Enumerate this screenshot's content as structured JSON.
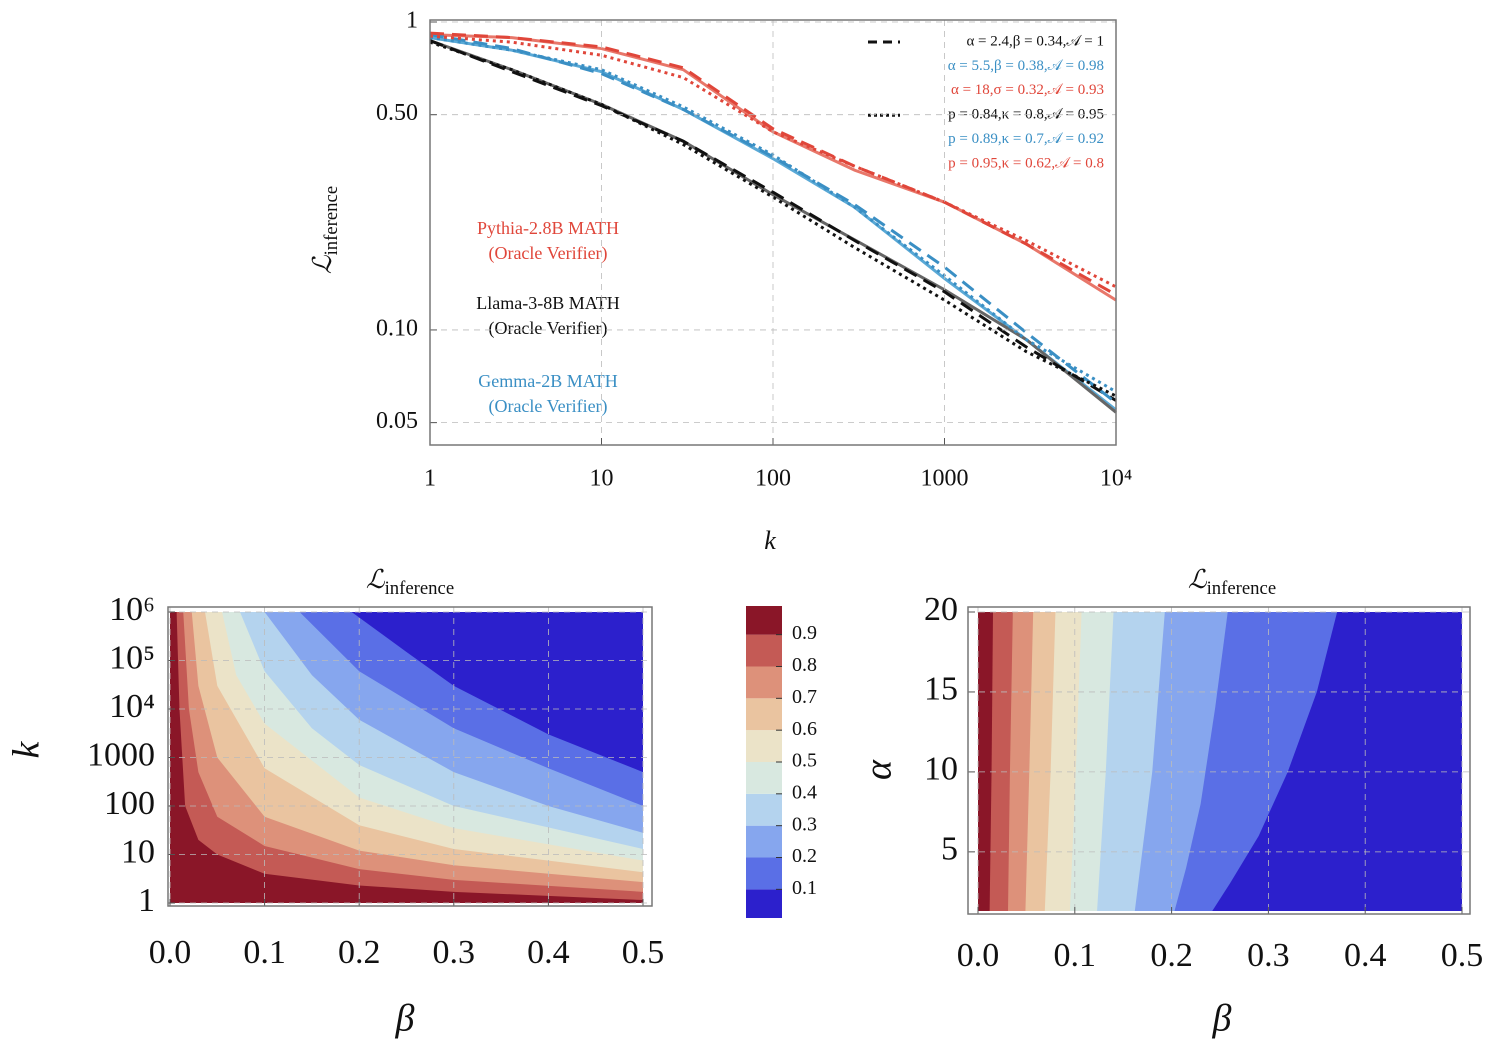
{
  "chart_data": [
    {
      "type": "line",
      "log_x": true,
      "log_y": true,
      "grid": true,
      "x_label": "k",
      "y_label": "ℒ",
      "y_label_sub": "inference",
      "xlim": [
        1,
        10000
      ],
      "ylim": [
        0.0423,
        1
      ],
      "xticks": [
        1,
        10,
        100,
        1000,
        {
          "value": 10000,
          "label": "10⁴"
        }
      ],
      "yticks": [
        0.05,
        {
          "value": 0.1,
          "label": "0.10"
        },
        {
          "value": 0.5,
          "label": "0.50"
        },
        1
      ],
      "x": [
        1,
        3,
        10,
        30,
        100,
        300,
        1000,
        3000,
        10000
      ],
      "legend": "top-right",
      "series": [
        {
          "color": "#e8776a",
          "dash": "solid",
          "values": [
            0.91,
            0.89,
            0.82,
            0.7,
            0.44,
            0.33,
            0.26,
            0.19,
            0.125
          ]
        },
        {
          "color": "#5aa9d6",
          "dash": "solid",
          "values": [
            0.89,
            0.81,
            0.69,
            0.52,
            0.36,
            0.25,
            0.147,
            0.093,
            0.055
          ]
        },
        {
          "color": "#666666",
          "dash": "solid",
          "values": [
            0.87,
            0.7,
            0.54,
            0.41,
            0.275,
            0.196,
            0.135,
            0.093,
            0.054
          ]
        },
        {
          "name": "α = 2.4,β = 0.34,𝒜 = 1",
          "color": "#111111",
          "dash": "dashed",
          "legend_marker": true,
          "values": [
            0.87,
            0.69,
            0.535,
            0.41,
            0.28,
            0.195,
            0.133,
            0.088,
            0.059
          ]
        },
        {
          "name": "α = 5.5,β = 0.38,𝒜 = 0.98",
          "color": "#3a8fc4",
          "dash": "dashed",
          "values": [
            0.91,
            0.82,
            0.68,
            0.52,
            0.365,
            0.255,
            0.16,
            0.098,
            0.058
          ]
        },
        {
          "name": "α = 18,σ = 0.32,𝒜 = 0.93",
          "color": "#e0463a",
          "dash": "dashed",
          "values": [
            0.92,
            0.89,
            0.83,
            0.71,
            0.45,
            0.34,
            0.26,
            0.19,
            0.13
          ]
        },
        {
          "name": "p = 0.84,κ = 0.8,𝒜 = 0.95",
          "color": "#111111",
          "dash": "dotted",
          "legend_marker": true,
          "values": [
            0.86,
            0.7,
            0.54,
            0.4,
            0.27,
            0.185,
            0.125,
            0.085,
            0.061
          ]
        },
        {
          "name": "p = 0.89,κ = 0.7,𝒜 = 0.92",
          "color": "#3a8fc4",
          "dash": "dotted",
          "values": [
            0.89,
            0.81,
            0.7,
            0.53,
            0.37,
            0.25,
            0.15,
            0.093,
            0.063
          ]
        },
        {
          "name": "p = 0.95,κ = 0.62,𝒜 = 0.8",
          "color": "#e0463a",
          "dash": "dotted",
          "values": [
            0.9,
            0.86,
            0.78,
            0.66,
            0.44,
            0.34,
            0.26,
            0.195,
            0.138
          ]
        }
      ],
      "annotations": [
        {
          "lines": [
            "Pythia-2.8B MATH",
            "(Oracle Verifier)"
          ],
          "color": "#e0463a"
        },
        {
          "lines": [
            "Llama-3-8B MATH",
            "(Oracle Verifier)"
          ],
          "color": "#111111"
        },
        {
          "lines": [
            "Gemma-2B MATH",
            "(Oracle Verifier)"
          ],
          "color": "#3a8fc4"
        }
      ]
    },
    {
      "type": "contour",
      "log_y": true,
      "grid": true,
      "title": "ℒ",
      "title_sub": "inference",
      "x_label": "β",
      "y_label": "k",
      "xlim": [
        0,
        0.5
      ],
      "ylim": [
        1,
        1000000
      ],
      "xticks": [
        {
          "value": 0,
          "label": "0.0"
        },
        0.1,
        0.2,
        0.3,
        0.4,
        0.5
      ],
      "yticks": [
        1,
        10,
        100,
        1000,
        {
          "value": 10000,
          "label": "10⁴"
        },
        {
          "value": 100000,
          "label": "10⁵"
        },
        {
          "value": 1000000,
          "label": "10⁶"
        }
      ],
      "colorbar": {
        "lim": [
          0.01,
          0.99
        ],
        "ticks": [
          0.1,
          0.2,
          0.3,
          0.4,
          0.5,
          0.6,
          0.7,
          0.8,
          0.9
        ],
        "colors": [
          "#2c20cc",
          "#5a6fe6",
          "#86a6ee",
          "#b4d3ee",
          "#d8e8e0",
          "#ebe3c8",
          "#eac4a0",
          "#dd917a",
          "#c45a55",
          "#8a1628"
        ]
      },
      "contours": [
        {
          "level": 0.1,
          "x": [
            0.192,
            0.25,
            0.3,
            0.4,
            0.5
          ],
          "y": [
            1000000,
            150000,
            30000,
            3000,
            500
          ]
        },
        {
          "level": 0.2,
          "x": [
            0.137,
            0.2,
            0.3,
            0.4,
            0.5
          ],
          "y": [
            1000000,
            60000,
            4000,
            600,
            100
          ]
        },
        {
          "level": 0.3,
          "x": [
            0.1,
            0.15,
            0.2,
            0.3,
            0.4,
            0.5
          ],
          "y": [
            1000000,
            50000,
            6000,
            500,
            100,
            28
          ]
        },
        {
          "level": 0.4,
          "x": [
            0.074,
            0.1,
            0.15,
            0.2,
            0.3,
            0.5
          ],
          "y": [
            1000000,
            60000,
            4000,
            700,
            100,
            13
          ]
        },
        {
          "level": 0.5,
          "x": [
            0.055,
            0.07,
            0.1,
            0.2,
            0.3,
            0.5
          ],
          "y": [
            1000000,
            50000,
            5000,
            150,
            35,
            7.5
          ]
        },
        {
          "level": 0.6,
          "x": [
            0.037,
            0.05,
            0.1,
            0.2,
            0.3,
            0.5
          ],
          "y": [
            1000000,
            30000,
            600,
            40,
            13,
            4.3
          ]
        },
        {
          "level": 0.7,
          "x": [
            0.023,
            0.03,
            0.05,
            0.1,
            0.2,
            0.3,
            0.5
          ],
          "y": [
            1000000,
            30000,
            1000,
            60,
            12,
            6,
            2.7
          ]
        },
        {
          "level": 0.8,
          "x": [
            0.014,
            0.02,
            0.03,
            0.05,
            0.1,
            0.2,
            0.3,
            0.5
          ],
          "y": [
            1000000,
            10000,
            500,
            60,
            15,
            5,
            3,
            1.7
          ]
        },
        {
          "level": 0.9,
          "x": [
            0.007,
            0.01,
            0.016,
            0.03,
            0.05,
            0.1,
            0.2,
            0.3,
            0.5
          ],
          "y": [
            1000000,
            10000,
            100,
            20,
            10,
            4,
            2.3,
            1.7,
            1.15
          ]
        }
      ]
    },
    {
      "type": "contour",
      "grid": true,
      "title": "ℒ",
      "title_sub": "inference",
      "x_label": "β",
      "y_label": "α",
      "xlim": [
        0,
        0.5
      ],
      "ylim": [
        1.3,
        20
      ],
      "xticks": [
        {
          "value": 0,
          "label": "0.0"
        },
        0.1,
        0.2,
        0.3,
        0.4,
        0.5
      ],
      "yticks": [
        5,
        10,
        15,
        20
      ],
      "contours": [
        {
          "level": 0.1,
          "x": [
            0.371,
            0.35,
            0.32,
            0.29,
            0.26,
            0.242
          ],
          "y": [
            20,
            15,
            10,
            6,
            3,
            1.3
          ]
        },
        {
          "level": 0.2,
          "x": [
            0.258,
            0.245,
            0.23,
            0.215,
            0.203
          ],
          "y": [
            20,
            14,
            8,
            4,
            1.3
          ]
        },
        {
          "level": 0.3,
          "x": [
            0.193,
            0.18,
            0.162
          ],
          "y": [
            20,
            10,
            1.3
          ]
        },
        {
          "level": 0.4,
          "x": [
            0.14,
            0.132,
            0.123
          ],
          "y": [
            20,
            10,
            1.3
          ]
        },
        {
          "level": 0.5,
          "x": [
            0.107,
            0.101,
            0.095
          ],
          "y": [
            20,
            10,
            1.3
          ]
        },
        {
          "level": 0.6,
          "x": [
            0.08,
            0.075,
            0.069
          ],
          "y": [
            20,
            10,
            1.3
          ]
        },
        {
          "level": 0.7,
          "x": [
            0.057,
            0.053,
            0.049
          ],
          "y": [
            20,
            10,
            1.3
          ]
        },
        {
          "level": 0.8,
          "x": [
            0.036,
            0.033,
            0.031
          ],
          "y": [
            20,
            10,
            1.3
          ]
        },
        {
          "level": 0.9,
          "x": [
            0.0155,
            0.014,
            0.012
          ],
          "y": [
            20,
            10,
            1.3
          ]
        }
      ]
    }
  ]
}
